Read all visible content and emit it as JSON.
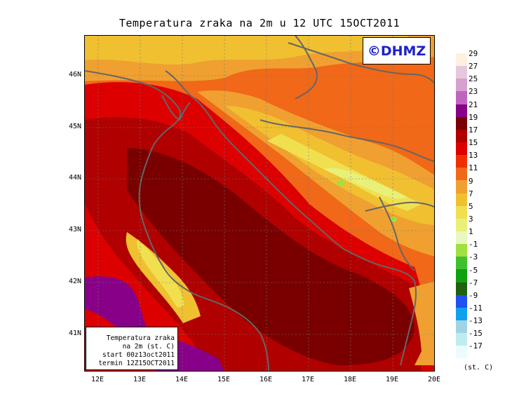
{
  "title": "Temperatura zraka na 2m u 12 UTC 15OCT2011",
  "logo": "©DHMZ",
  "infobox": {
    "line1": "Temperatura zraka",
    "line2": "na 2m (st. C)",
    "line3": "start 00z13oct2011",
    "line4": "termin 12Z15OCT2011"
  },
  "lat_labels": [
    "46N",
    "45N",
    "44N",
    "43N",
    "42N",
    "41N"
  ],
  "lon_labels": [
    "12E",
    "13E",
    "14E",
    "15E",
    "16E",
    "17E",
    "18E",
    "19E",
    "20E"
  ],
  "legend": {
    "labels": [
      "29",
      "27",
      "25",
      "23",
      "21",
      "19",
      "17",
      "15",
      "13",
      "11",
      "9",
      "7",
      "5",
      "3",
      "1",
      "-1",
      "-3",
      "-5",
      "-7",
      "-9",
      "-11",
      "-13",
      "-15",
      "-17"
    ],
    "colors": [
      "#fff0e0",
      "#e6c8dc",
      "#d8a0cc",
      "#c064c0",
      "#880088",
      "#7a0000",
      "#b00000",
      "#dc0000",
      "#f03000",
      "#f06818",
      "#f0a030",
      "#f0c030",
      "#f0e050",
      "#e8f078",
      "#e8f8c0",
      "#a0e040",
      "#40c030",
      "#10a010",
      "#206010",
      "#2050f0",
      "#10a0f0",
      "#a0d4e4",
      "#c0ecf0",
      "#ecfcfc"
    ],
    "unit": "(st. C)"
  }
}
